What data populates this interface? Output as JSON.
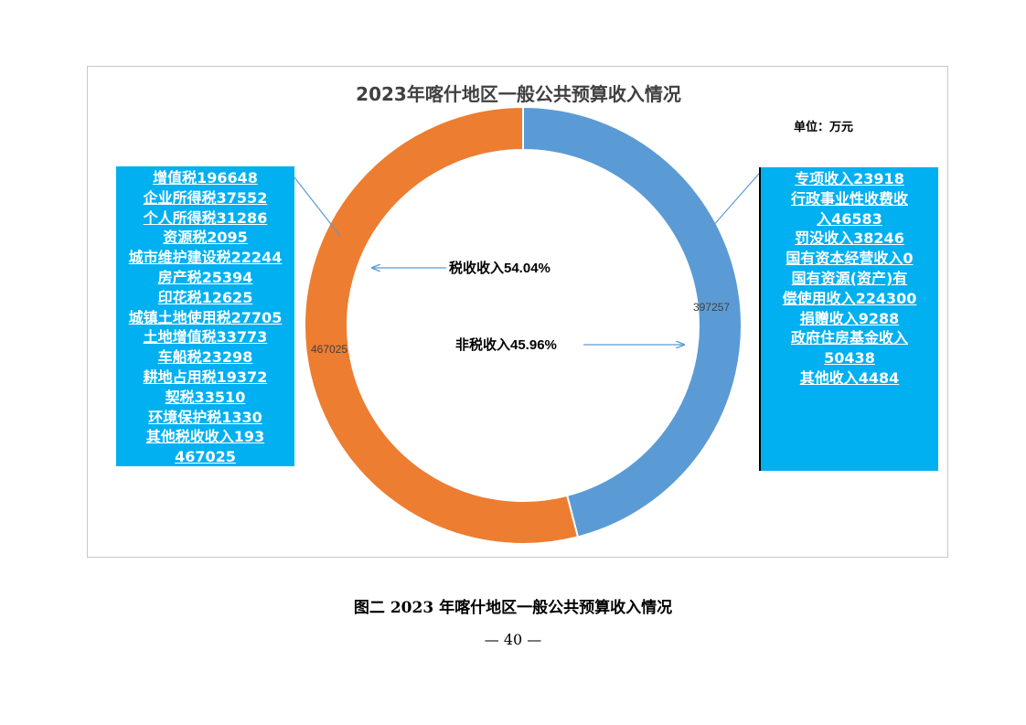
{
  "title": "2023年喀什地区一般公共预算收入情况",
  "unit": "单位：万元",
  "caption": "图二  2023 年喀什地区一般公共预算收入情况",
  "page_number": "— 40 —",
  "left_box": {
    "lines": [
      "增值税196648",
      "企业所得税37552",
      "个人所得税31286",
      "资源税2095",
      "城市维护建设税22244",
      "房产税25394",
      "印花税12625",
      "城镇土地使用税27705",
      "土地增值税33773",
      "车船税23298",
      "耕地占用税19372",
      "契税33510",
      "环境保护税1330",
      "其他税收收入193",
      "467025"
    ]
  },
  "right_box": {
    "lines": [
      "专项收入23918",
      "行政事业性收费收",
      "入46583",
      "罚没收入38246",
      "国有资本经营收入0",
      "国有资源(资产)有",
      "偿使用收入224300",
      "捐赠收入9288",
      "政府住房基金收入",
      "50438",
      "其他收入4484"
    ]
  },
  "chart_data": {
    "type": "pie",
    "title": "2023年喀什地区一般公共预算收入情况",
    "unit": "单位：万元",
    "slices": [
      {
        "label": "非税收入",
        "value": 397257,
        "percent_label": "非税收入45.96%",
        "value_label": "397257",
        "color": "#5b9bd5"
      },
      {
        "label": "税收收入",
        "value": 467025,
        "percent_label": "税收收入54.04%",
        "value_label": "467025",
        "color": "#ed7d31"
      }
    ]
  }
}
